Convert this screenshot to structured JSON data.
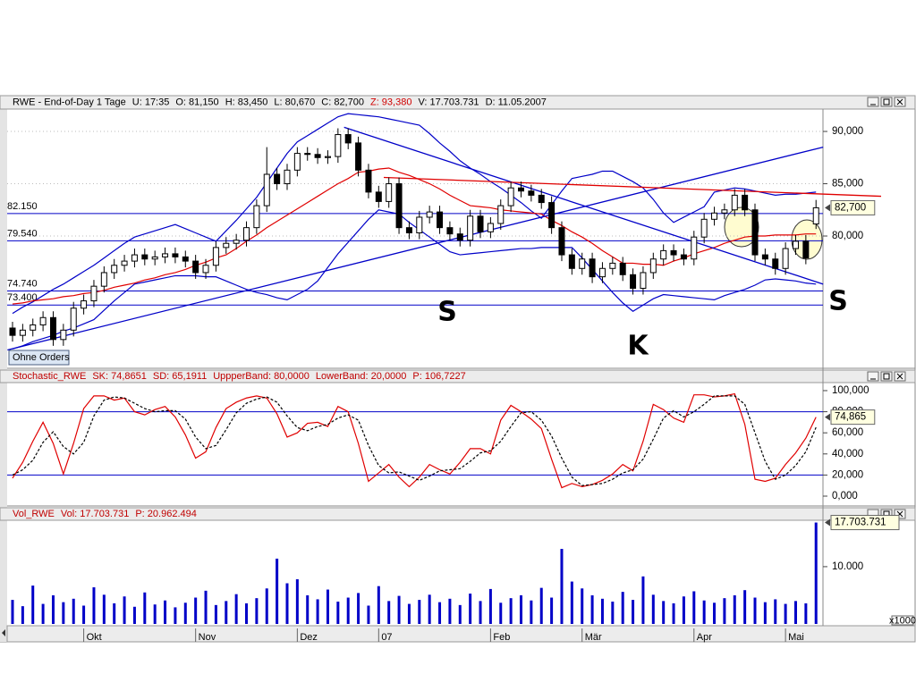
{
  "chart_data": [
    {
      "type": "candlestick",
      "header": [
        "RWE - End-of-Day 1 Tage",
        "U: 17:35",
        "O: 81,150",
        "H: 83,450",
        "L: 80,670",
        "C: 82,700",
        "Z: 93,380",
        "V: 17.703.731",
        "D: 11.05.2007"
      ],
      "open": [
        71.2,
        70.5,
        71.0,
        71.5,
        72.2,
        70.1,
        71.0,
        73.1,
        73.8,
        75.2,
        76.5,
        77.2,
        77.6,
        78.2,
        77.8,
        78.0,
        78.3,
        78.0,
        77.6,
        76.5,
        77.2,
        78.9,
        79.3,
        79.6,
        80.8,
        82.9,
        85.9,
        85.0,
        86.3,
        87.9,
        87.8,
        87.5,
        87.6,
        89.7,
        88.9,
        86.3,
        84.2,
        83.3,
        85.0,
        80.8,
        80.3,
        81.8,
        82.3,
        80.8,
        80.2,
        79.6,
        81.9,
        80.4,
        81.2,
        82.9,
        84.6,
        84.3,
        83.9,
        83.2,
        80.8,
        78.2,
        76.9,
        77.8,
        76.1,
        76.9,
        77.4,
        76.3,
        75.0,
        76.5,
        77.8,
        78.6,
        78.2,
        77.8,
        79.9,
        81.6,
        82.2,
        82.5,
        83.9,
        82.5,
        78.2,
        77.8,
        76.9,
        78.8,
        79.5,
        81.15
      ],
      "high": [
        71.8,
        71.6,
        72.1,
        72.8,
        72.8,
        71.6,
        73.7,
        74.4,
        75.8,
        77.1,
        77.8,
        78.2,
        78.8,
        78.8,
        78.6,
        78.9,
        78.9,
        78.6,
        78.2,
        77.8,
        79.5,
        79.9,
        80.2,
        81.4,
        83.5,
        88.5,
        86.5,
        86.9,
        88.5,
        88.5,
        88.4,
        88.2,
        90.3,
        90.3,
        89.5,
        86.9,
        84.8,
        85.6,
        85.6,
        81.4,
        82.4,
        82.9,
        82.9,
        81.4,
        80.8,
        82.5,
        82.5,
        81.8,
        83.5,
        85.2,
        85.2,
        84.9,
        84.5,
        83.8,
        81.4,
        78.8,
        78.4,
        78.4,
        77.5,
        78.0,
        78.0,
        76.9,
        77.1,
        78.4,
        79.2,
        79.2,
        78.8,
        80.5,
        82.2,
        82.8,
        83.1,
        84.5,
        84.5,
        83.1,
        78.8,
        78.4,
        79.4,
        80.1,
        80.1,
        83.45
      ],
      "low": [
        69.9,
        69.9,
        70.4,
        70.9,
        69.5,
        69.5,
        70.4,
        72.5,
        73.2,
        74.6,
        75.9,
        76.6,
        77.0,
        77.2,
        77.2,
        77.4,
        77.4,
        77.0,
        75.9,
        75.9,
        76.6,
        78.3,
        78.7,
        79.0,
        80.2,
        82.3,
        84.4,
        84.4,
        85.7,
        87.2,
        86.9,
        86.9,
        87.0,
        88.3,
        85.7,
        83.6,
        82.7,
        82.7,
        80.2,
        79.7,
        79.7,
        81.2,
        80.2,
        79.6,
        79.0,
        79.0,
        79.8,
        79.8,
        80.6,
        82.3,
        83.7,
        83.3,
        82.6,
        80.2,
        77.6,
        76.3,
        76.3,
        75.5,
        75.5,
        76.3,
        75.7,
        74.4,
        74.4,
        75.9,
        77.2,
        77.6,
        77.2,
        77.2,
        79.3,
        81.0,
        81.6,
        81.9,
        81.9,
        77.6,
        77.2,
        76.3,
        76.3,
        78.2,
        77.3,
        80.67
      ],
      "close": [
        70.5,
        71.0,
        71.5,
        72.2,
        70.1,
        71.0,
        73.1,
        73.8,
        75.2,
        76.5,
        77.2,
        77.6,
        78.2,
        77.8,
        78.0,
        78.3,
        78.0,
        77.6,
        76.5,
        77.2,
        78.9,
        79.3,
        79.6,
        80.8,
        82.9,
        85.9,
        85.0,
        86.3,
        87.9,
        87.8,
        87.5,
        87.6,
        89.7,
        88.9,
        86.3,
        84.2,
        83.3,
        85.0,
        80.8,
        80.3,
        81.8,
        82.3,
        80.8,
        80.2,
        79.6,
        81.9,
        80.4,
        81.2,
        82.9,
        84.6,
        84.3,
        83.9,
        83.2,
        80.8,
        78.2,
        76.9,
        77.8,
        76.1,
        76.9,
        77.4,
        76.3,
        75.0,
        76.5,
        77.8,
        78.6,
        78.2,
        77.8,
        79.9,
        81.6,
        82.2,
        82.5,
        83.9,
        82.5,
        78.2,
        77.8,
        76.9,
        78.8,
        79.5,
        77.9,
        82.7
      ],
      "overlays": [
        {
          "color": "#0000c8",
          "values": [
            72.6,
            73.2,
            73.7,
            74.3,
            74.9,
            75.4,
            76.0,
            76.6,
            77.2,
            77.9,
            78.6,
            79.3,
            79.9,
            80.2,
            80.5,
            80.8,
            81.1,
            80.7,
            80.3,
            79.9,
            79.5,
            80.5,
            81.5,
            82.6,
            83.7,
            85.1,
            86.5,
            87.9,
            89.0,
            89.6,
            90.2,
            90.8,
            91.4,
            91.7,
            91.6,
            91.5,
            91.4,
            91.2,
            91.0,
            90.8,
            90.6,
            89.8,
            88.9,
            88.1,
            87.2,
            86.5,
            85.9,
            85.2,
            84.6,
            83.9,
            83.2,
            82.4,
            81.7,
            83.0,
            84.3,
            85.5,
            85.7,
            85.9,
            86.2,
            86.2,
            85.7,
            85.2,
            84.6,
            83.5,
            82.2,
            81.3,
            81.8,
            82.3,
            82.8,
            84.2,
            84.4,
            84.6,
            84.5,
            84.3,
            84.1,
            83.9,
            84.0,
            84.0,
            84.1,
            84.2
          ]
        },
        {
          "color": "#e00000",
          "values": [
            73.5,
            73.6,
            73.8,
            73.9,
            74.0,
            74.2,
            74.3,
            74.5,
            74.6,
            74.8,
            75.1,
            75.3,
            75.5,
            75.8,
            76.0,
            76.3,
            76.5,
            76.8,
            77.2,
            77.5,
            77.9,
            78.2,
            78.8,
            79.5,
            80.1,
            80.8,
            81.4,
            82.0,
            82.6,
            83.2,
            83.8,
            84.4,
            85.0,
            85.5,
            86.1,
            86.2,
            86.4,
            86.5,
            86.1,
            85.8,
            85.4,
            85.0,
            84.5,
            83.9,
            83.4,
            82.9,
            82.8,
            82.7,
            82.5,
            82.4,
            82.3,
            82.2,
            82.1,
            81.5,
            81.0,
            80.4,
            79.9,
            79.3,
            78.6,
            78.0,
            77.4,
            77.4,
            77.3,
            77.3,
            77.2,
            77.6,
            77.9,
            78.3,
            78.6,
            78.9,
            79.3,
            79.6,
            79.9,
            80.0,
            80.0,
            80.1,
            80.1,
            80.1,
            80.2,
            80.2
          ]
        },
        {
          "color": "#0000c8",
          "values": [
            69.2,
            69.5,
            69.9,
            70.2,
            70.5,
            70.9,
            71.2,
            71.6,
            72.0,
            72.9,
            73.8,
            74.6,
            75.4,
            75.6,
            75.8,
            76.0,
            76.2,
            76.2,
            76.2,
            76.1,
            76.1,
            75.7,
            75.3,
            74.9,
            74.6,
            74.4,
            74.1,
            73.9,
            74.4,
            74.9,
            75.7,
            77.0,
            78.3,
            79.4,
            80.5,
            81.6,
            82.5,
            82.3,
            82.1,
            81.3,
            80.6,
            79.9,
            79.2,
            78.5,
            78.2,
            78.3,
            78.4,
            78.5,
            78.6,
            78.7,
            78.8,
            78.8,
            78.9,
            78.9,
            78.9,
            78.9,
            77.9,
            76.8,
            75.7,
            74.6,
            73.6,
            72.8,
            73.4,
            74.0,
            74.4,
            74.3,
            74.2,
            74.1,
            74.0,
            73.9,
            74.3,
            74.6,
            74.9,
            75.3,
            75.8,
            75.9,
            75.8,
            75.7,
            75.5,
            75.4
          ]
        }
      ],
      "trendlines": [
        {
          "color": "#0000c8",
          "x": [
            -0.5,
            79.7
          ],
          "y": [
            69.1,
            88.5
          ]
        },
        {
          "color": "#0000c8",
          "x": [
            32.6,
            79.7
          ],
          "y": [
            90.4,
            75.4
          ]
        },
        {
          "color": "#e00000",
          "x": [
            36.5,
            85.4
          ],
          "y": [
            85.6,
            83.8
          ]
        }
      ],
      "levels": [
        {
          "value": 82.15,
          "label": "82.150"
        },
        {
          "value": 79.54,
          "label": "79.540"
        },
        {
          "value": 74.74,
          "label": "74.740"
        },
        {
          "value": 73.4,
          "label": "73.400"
        }
      ],
      "level_color": "#0000c8",
      "last_label": {
        "value": 82.7,
        "label": "82,700"
      },
      "annotations": [
        "S",
        "K",
        "S"
      ],
      "button": "Ohne Orders",
      "ylim": [
        67.35,
        92.14
      ],
      "yticks": [
        {
          "value": 80,
          "label": "80,000"
        },
        {
          "value": 85,
          "label": "85,000"
        },
        {
          "value": 90,
          "label": "90,000"
        }
      ],
      "grid": true
    },
    {
      "type": "line",
      "header": [
        "Stochastic_RWE",
        "SK: 74,8651",
        "SD: 65,1911",
        "UppperBand: 80,0000",
        "LowerBand: 20,0000",
        "P: 106,7227"
      ],
      "series": [
        {
          "color": "#e00000",
          "dashed": false,
          "values": [
            17,
            32,
            52,
            70,
            50,
            21,
            50,
            83,
            95,
            95,
            91,
            93,
            80,
            77,
            82,
            85,
            75,
            58,
            36,
            42,
            65,
            83,
            89,
            93,
            95,
            93,
            78,
            56,
            60,
            69,
            70,
            66,
            85,
            80,
            50,
            14,
            22,
            30,
            18,
            9,
            18,
            30,
            25,
            21,
            32,
            45,
            45,
            40,
            72,
            86,
            80,
            73,
            64,
            35,
            8,
            12,
            9,
            11,
            15,
            21,
            30,
            24,
            52,
            87,
            82,
            74,
            70,
            96,
            96,
            94,
            95,
            97,
            68,
            16,
            14,
            17,
            30,
            41,
            55,
            74.8651
          ]
        },
        {
          "color": "#000000",
          "dashed": true,
          "values": [
            20,
            25,
            34,
            51,
            61,
            47,
            40,
            51,
            76,
            91,
            94,
            93,
            88,
            83,
            80,
            81,
            81,
            73,
            56,
            45,
            48,
            63,
            79,
            88,
            92,
            94,
            89,
            76,
            65,
            62,
            66,
            68,
            74,
            77,
            72,
            48,
            29,
            22,
            23,
            19,
            15,
            19,
            24,
            25,
            26,
            33,
            41,
            43,
            52,
            66,
            79,
            80,
            72,
            57,
            36,
            18,
            10,
            11,
            12,
            16,
            22,
            25,
            35,
            54,
            74,
            81,
            75,
            80,
            87,
            95,
            95,
            95,
            87,
            60,
            33,
            16,
            20,
            29,
            42,
            65.1911
          ]
        }
      ],
      "levels": [
        80,
        20
      ],
      "level_color": "#0000c8",
      "last_label": {
        "value": 74.865,
        "label": "74,865"
      },
      "ylim": [
        -11,
        107.6
      ],
      "yticks": [
        {
          "value": 0,
          "label": "0,000"
        },
        {
          "value": 20,
          "label": "20,000"
        },
        {
          "value": 40,
          "label": "40,000"
        },
        {
          "value": 60,
          "label": "60,000"
        },
        {
          "value": 80,
          "label": "80,000"
        },
        {
          "value": 100,
          "label": "100,000"
        }
      ]
    },
    {
      "type": "bar",
      "header": [
        "Vol_RWE",
        "Vol: 17.703.731",
        "P: 20.962.494"
      ],
      "color": "#0000c8",
      "values": [
        4.2,
        3.1,
        6.7,
        3.5,
        5.0,
        3.8,
        4.4,
        3.2,
        6.4,
        5.1,
        3.6,
        4.8,
        3.0,
        5.5,
        3.4,
        4.1,
        2.9,
        3.7,
        4.6,
        5.8,
        3.3,
        4.0,
        5.2,
        3.6,
        4.5,
        6.2,
        11.4,
        7.1,
        7.8,
        5.0,
        4.3,
        6.0,
        3.9,
        4.6,
        5.4,
        3.2,
        6.6,
        4.0,
        4.9,
        3.5,
        4.2,
        5.1,
        3.8,
        4.4,
        3.3,
        5.3,
        4.0,
        6.1,
        3.7,
        4.5,
        5.0,
        4.1,
        6.3,
        4.6,
        13.1,
        7.4,
        6.2,
        5.0,
        4.4,
        3.9,
        5.6,
        4.2,
        8.3,
        5.1,
        4.0,
        3.6,
        4.8,
        5.7,
        4.1,
        3.7,
        4.5,
        5.0,
        5.9,
        4.6,
        3.8,
        4.3,
        3.5,
        4.0,
        3.6,
        17.703731
      ],
      "categories": [
        null,
        null,
        null,
        null,
        null,
        null,
        null,
        "Okt",
        null,
        null,
        null,
        null,
        null,
        null,
        null,
        null,
        null,
        null,
        "Nov",
        null,
        null,
        null,
        null,
        null,
        null,
        null,
        null,
        null,
        "Dez",
        null,
        null,
        null,
        null,
        null,
        null,
        null,
        "07",
        null,
        null,
        null,
        null,
        null,
        null,
        null,
        null,
        null,
        null,
        "Feb",
        null,
        null,
        null,
        null,
        null,
        null,
        null,
        null,
        "Mär",
        null,
        null,
        null,
        null,
        null,
        null,
        null,
        null,
        null,
        null,
        "Apr",
        null,
        null,
        null,
        null,
        null,
        null,
        null,
        null,
        "Mai",
        null,
        null,
        null
      ],
      "last_label": {
        "value": 17.703731,
        "label": "17.703.731"
      },
      "unit_label": "x1000",
      "ylim": [
        0,
        18.1
      ],
      "yticks": [
        {
          "value": 10,
          "label": "10.000"
        }
      ]
    }
  ]
}
